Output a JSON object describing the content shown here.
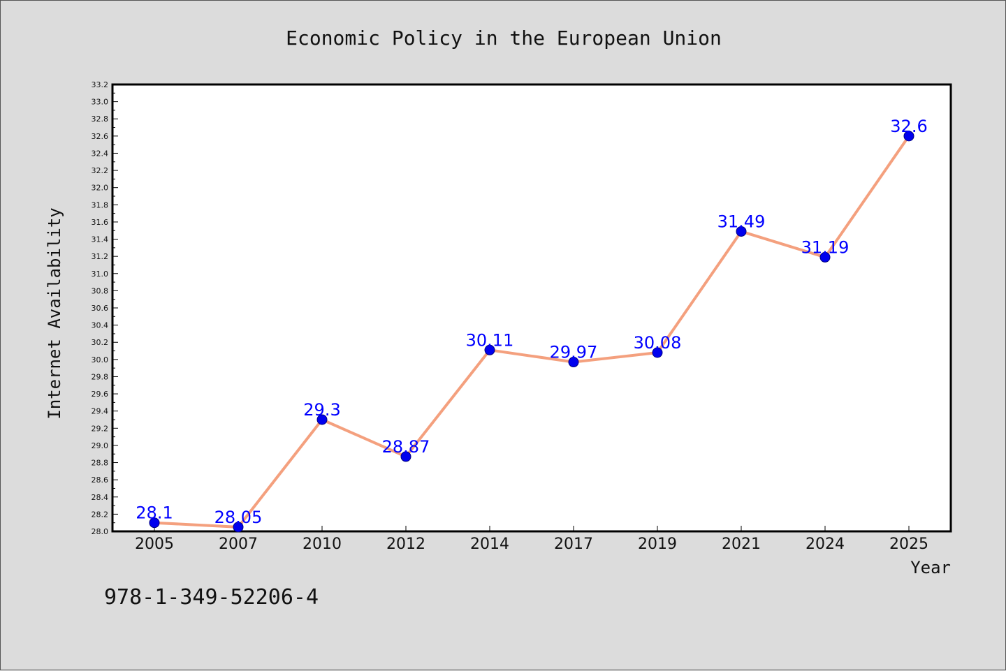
{
  "chart_data": {
    "type": "line",
    "title": "Economic Policy in the European Union",
    "xlabel": "Year",
    "ylabel": "Internet Availability",
    "categories": [
      "2005",
      "2007",
      "2010",
      "2012",
      "2014",
      "2017",
      "2019",
      "2021",
      "2024",
      "2025"
    ],
    "series": [
      {
        "values": [
          28.1,
          28.05,
          29.3,
          28.87,
          30.11,
          29.97,
          30.08,
          31.49,
          31.19,
          32.6
        ],
        "data_labels": [
          "28.1",
          "28.05",
          "29.3",
          "28.87",
          "30.11",
          "29.97",
          "30.08",
          "31.49",
          "31.19",
          "32.6"
        ]
      }
    ],
    "ylim": [
      28.0,
      33.2
    ],
    "ytick_step": 0.2,
    "grid": false,
    "colors": {
      "line": "#f4a07e",
      "marker": "#0000ee",
      "marker_edge": "#000080",
      "data_label": "#0000ff",
      "plot_bg": "#ffffff",
      "page_bg": "#dcdcdc"
    }
  },
  "footer_text": "978-1-349-52206-4"
}
